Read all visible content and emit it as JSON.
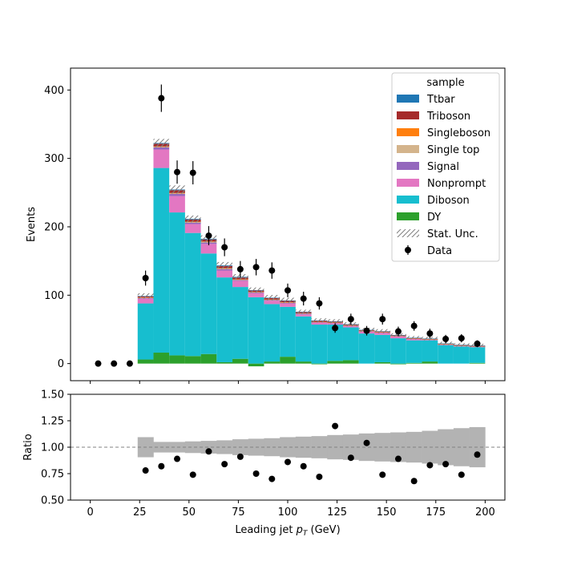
{
  "chart_data": [
    {
      "type": "bar",
      "subtype": "stacked-histogram",
      "xlabel": "",
      "ylabel": "Events",
      "xlim": [
        -10,
        210
      ],
      "ylim": [
        -25,
        432
      ],
      "xticks": [
        0,
        25,
        50,
        75,
        100,
        125,
        150,
        175,
        200
      ],
      "yticks": [
        0,
        100,
        200,
        300,
        400
      ],
      "bin_edges": [
        0,
        8,
        16,
        24,
        32,
        40,
        48,
        56,
        64,
        72,
        80,
        88,
        96,
        104,
        112,
        120,
        128,
        136,
        144,
        152,
        160,
        168,
        176,
        184,
        192,
        200
      ],
      "legend": {
        "title": "sample",
        "position": "top-right"
      },
      "series": [
        {
          "name": "DY",
          "color": "#2ca02c",
          "values": [
            0,
            0,
            0,
            6,
            16,
            12,
            11,
            14,
            2,
            7,
            -4,
            3,
            10,
            3,
            -1,
            4,
            5,
            0,
            2,
            -1,
            1,
            3,
            0,
            0,
            1
          ]
        },
        {
          "name": "Diboson",
          "color": "#17becf",
          "values": [
            0,
            0,
            0,
            82,
            270,
            209,
            180,
            147,
            124,
            105,
            97,
            84,
            73,
            66,
            57,
            53,
            48,
            44,
            40,
            37,
            33,
            31,
            27,
            25,
            23
          ]
        },
        {
          "name": "Nonprompt",
          "color": "#e377c2",
          "values": [
            0,
            0,
            0,
            7,
            27,
            24,
            13,
            14,
            10,
            9,
            6,
            5,
            5,
            3,
            3,
            2,
            2,
            3,
            3,
            3,
            2,
            1,
            1,
            1,
            1
          ]
        },
        {
          "name": "Signal",
          "color": "#9467bd",
          "values": [
            0,
            0,
            0,
            1,
            3,
            3,
            2,
            2,
            2,
            1,
            1,
            1,
            1,
            1,
            0.6,
            0.6,
            0.5,
            0.5,
            0.5,
            0.4,
            0.4,
            0.3,
            0.3,
            0.3,
            0.3
          ]
        },
        {
          "name": "Single top",
          "color": "#d4b48c",
          "values": [
            0,
            0,
            0,
            0.5,
            1,
            1,
            1,
            1,
            1,
            1,
            0.5,
            0.5,
            0.5,
            0.5,
            0.3,
            0.3,
            0.3,
            0.3,
            0.3,
            0.2,
            0.2,
            0.2,
            0.2,
            0.2,
            0.2
          ]
        },
        {
          "name": "Singleboson",
          "color": "#ff7f0e",
          "values": [
            0,
            0,
            0,
            0.3,
            0.5,
            0.5,
            0.5,
            0.5,
            0.5,
            0.3,
            0.3,
            0.3,
            0.3,
            0.3,
            0.2,
            0.2,
            0.2,
            0.2,
            0.2,
            0.1,
            0.1,
            0.1,
            0.1,
            0.1,
            0.1
          ]
        },
        {
          "name": "Triboson",
          "color": "#a52a2a",
          "values": [
            0,
            0,
            0,
            1.5,
            4,
            4,
            3,
            3,
            3,
            2.5,
            2,
            2,
            2,
            1.5,
            1.5,
            1.3,
            1.2,
            1,
            1,
            0.8,
            0.8,
            0.7,
            0.7,
            0.6,
            0.6
          ]
        },
        {
          "name": "Ttbar",
          "color": "#1f77b4",
          "values": [
            0,
            0,
            0,
            0.5,
            1,
            1,
            1,
            1,
            1,
            1,
            0.5,
            0.5,
            0.5,
            0.5,
            0.5,
            0.4,
            0.3,
            0.3,
            0.3,
            0.3,
            0.3,
            0.3,
            0.2,
            0.2,
            0.2
          ]
        }
      ],
      "stat_unc": {
        "name": "Stat. Unc.",
        "color": "#808080",
        "values": [
          0,
          0,
          0,
          4,
          6,
          6,
          5,
          5,
          5,
          4,
          4,
          4,
          4,
          3,
          3,
          3,
          3,
          3,
          3,
          2.5,
          2.5,
          2.5,
          2.5,
          2.5,
          2.5
        ]
      },
      "data_points": {
        "name": "Data",
        "x": [
          4,
          12,
          20,
          28,
          36,
          44,
          52,
          60,
          68,
          76,
          84,
          92,
          100,
          108,
          116,
          124,
          132,
          140,
          148,
          156,
          164,
          172,
          180,
          188,
          196
        ],
        "y": [
          0,
          0,
          0,
          125,
          388,
          280,
          279,
          187,
          170,
          138,
          141,
          136,
          107,
          95,
          88,
          52,
          65,
          48,
          65,
          47,
          55,
          44,
          36,
          37,
          29
        ],
        "err": [
          0,
          0,
          0,
          11,
          20,
          17,
          17,
          14,
          13,
          12,
          12,
          12,
          10,
          10,
          9,
          7,
          8,
          7,
          8,
          7,
          7,
          7,
          6,
          6,
          5
        ]
      }
    },
    {
      "type": "scatter",
      "xlabel": "Leading jet  $p_T$ (GeV)",
      "xlabel_main": "Leading jet ",
      "xlabel_var": "p",
      "xlabel_sub": "T",
      "xlabel_unit": " (GeV)",
      "ylabel": "Ratio",
      "xlim": [
        -10,
        210
      ],
      "ylim": [
        0.5,
        1.5
      ],
      "xticks": [
        0,
        25,
        50,
        75,
        100,
        125,
        150,
        175,
        200
      ],
      "yticks": [
        0.5,
        0.75,
        1.0,
        1.25,
        1.5
      ],
      "ytick_labels": [
        "0.50",
        "0.75",
        "1.00",
        "1.25",
        "1.50"
      ],
      "reference_line": 1.0,
      "band_lower": [
        null,
        null,
        null,
        0.905,
        0.95,
        0.95,
        0.945,
        0.94,
        0.935,
        0.925,
        0.92,
        0.915,
        0.905,
        0.9,
        0.895,
        0.885,
        0.88,
        0.87,
        0.865,
        0.86,
        0.855,
        0.845,
        0.83,
        0.82,
        0.81
      ],
      "band_upper": [
        null,
        null,
        null,
        1.095,
        1.05,
        1.05,
        1.055,
        1.06,
        1.065,
        1.075,
        1.08,
        1.085,
        1.095,
        1.1,
        1.105,
        1.115,
        1.12,
        1.13,
        1.135,
        1.14,
        1.145,
        1.155,
        1.17,
        1.18,
        1.19
      ],
      "x": [
        28,
        36,
        44,
        52,
        60,
        68,
        76,
        84,
        92,
        100,
        108,
        116,
        124,
        132,
        140,
        148,
        156,
        164,
        172,
        180,
        188,
        196
      ],
      "y": [
        0.78,
        0.82,
        0.89,
        0.74,
        0.96,
        0.84,
        0.91,
        0.75,
        0.7,
        0.86,
        0.82,
        0.72,
        1.2,
        0.9,
        1.04,
        0.74,
        0.89,
        0.68,
        0.83,
        0.84,
        0.74,
        0.93
      ]
    }
  ]
}
